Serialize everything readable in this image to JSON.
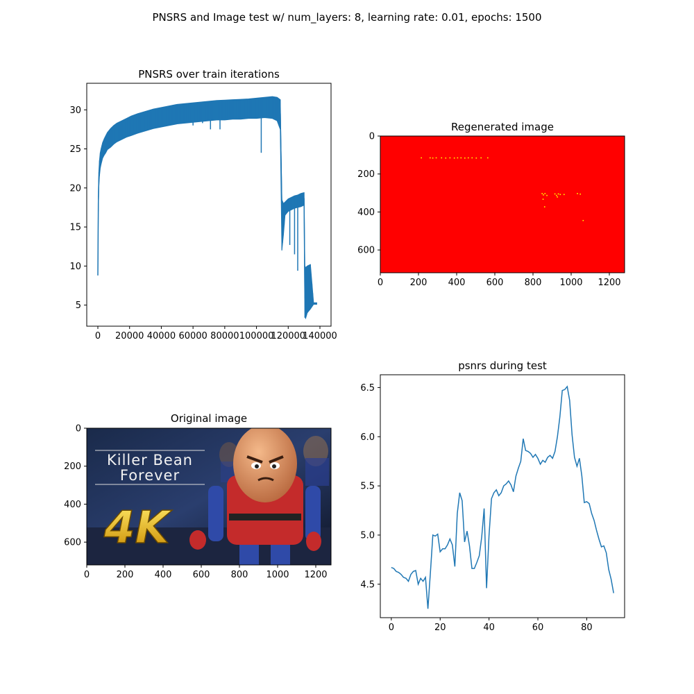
{
  "figure": {
    "suptitle": "PNSRS and Image test w/ num_layers: 8, learning rate: 0.01, epochs: 1500"
  },
  "colors": {
    "line": "#1f77b4",
    "regen_bg": "#ff0000",
    "regen_speckle": "#ffff00"
  },
  "chart_data": [
    {
      "id": "train",
      "type": "line",
      "title": "PNSRS over train iterations",
      "xlabel": "",
      "ylabel": "",
      "xlim": [
        -7000,
        147000
      ],
      "ylim": [
        2.3,
        33.4
      ],
      "xticks": [
        0,
        20000,
        40000,
        60000,
        80000,
        100000,
        120000,
        140000
      ],
      "xtick_labels": [
        "0",
        "20000",
        "40000",
        "60000",
        "80000",
        "100000",
        "120000",
        "140000"
      ],
      "yticks": [
        5,
        10,
        15,
        20,
        25,
        30
      ],
      "ytick_labels": [
        "5",
        "10",
        "15",
        "20",
        "25",
        "30"
      ],
      "series": [
        {
          "x": [
            0,
            300,
            600,
            1000,
            1500,
            2000,
            3000,
            4000,
            5000,
            6000,
            8000,
            10000,
            12000,
            15000,
            18000,
            21000,
            25000,
            30000,
            35000,
            40000,
            45000,
            50000,
            55000,
            60000,
            65000,
            70000,
            75000,
            80000,
            85000,
            90000,
            95000,
            100000,
            105000,
            110000,
            113000,
            115000,
            116000,
            117000,
            118000,
            120000,
            122000,
            124000,
            126000,
            128000,
            130000,
            130500,
            131000,
            132000,
            134000,
            136000,
            138000
          ],
          "y": [
            8.8,
            18.0,
            21.0,
            22.5,
            23.5,
            24.0,
            24.8,
            25.2,
            25.6,
            26.0,
            26.4,
            26.8,
            27.1,
            27.4,
            27.7,
            27.9,
            28.2,
            28.5,
            28.8,
            29.0,
            29.2,
            29.4,
            29.5,
            29.6,
            29.7,
            29.8,
            29.9,
            29.95,
            30.0,
            30.05,
            30.1,
            30.15,
            30.2,
            30.2,
            30.0,
            29.5,
            17.5,
            16.8,
            17.2,
            17.8,
            18.0,
            18.2,
            18.3,
            18.5,
            18.6,
            6.0,
            5.5,
            6.0,
            6.0,
            5.2,
            5.2
          ],
          "upper": [
            8.8,
            19.0,
            22.0,
            23.5,
            24.5,
            25.0,
            25.8,
            26.3,
            26.7,
            27.1,
            27.6,
            28.0,
            28.3,
            28.6,
            28.9,
            29.2,
            29.5,
            29.8,
            30.1,
            30.3,
            30.5,
            30.7,
            30.8,
            30.9,
            31.0,
            31.1,
            31.2,
            31.25,
            31.3,
            31.35,
            31.4,
            31.5,
            31.6,
            31.7,
            31.6,
            31.3,
            18.5,
            18.0,
            18.2,
            18.6,
            18.8,
            19.0,
            19.1,
            19.3,
            19.4,
            10.0,
            9.8,
            10.0,
            10.2,
            5.3,
            5.3
          ],
          "lower": [
            8.8,
            17.0,
            20.0,
            21.5,
            22.5,
            23.0,
            23.8,
            24.2,
            24.5,
            24.9,
            25.2,
            25.6,
            25.9,
            26.2,
            26.5,
            26.7,
            27.0,
            27.3,
            27.6,
            27.8,
            28.0,
            28.2,
            28.3,
            28.4,
            28.5,
            28.6,
            28.7,
            28.7,
            28.8,
            28.8,
            28.9,
            28.9,
            29.0,
            28.9,
            28.6,
            27.5,
            12.0,
            14.0,
            16.5,
            17.0,
            17.2,
            17.4,
            17.5,
            17.6,
            17.8,
            3.5,
            3.3,
            4.0,
            4.5,
            5.1,
            5.1
          ]
        }
      ],
      "spikes": [
        {
          "x": 60000,
          "y": 28.0
        },
        {
          "x": 66000,
          "y": 28.3
        },
        {
          "x": 71000,
          "y": 27.5
        },
        {
          "x": 77000,
          "y": 27.5
        },
        {
          "x": 103000,
          "y": 24.5
        },
        {
          "x": 121000,
          "y": 12.7
        },
        {
          "x": 124000,
          "y": 11.5
        },
        {
          "x": 126000,
          "y": 9.4
        },
        {
          "x": 130500,
          "y": 3.4
        }
      ]
    },
    {
      "id": "regen",
      "type": "heatmap",
      "title": "Regenerated image",
      "xlim": [
        0,
        1280
      ],
      "ylim": [
        720,
        0
      ],
      "xticks": [
        0,
        200,
        400,
        600,
        800,
        1000,
        1200
      ],
      "xtick_labels": [
        "0",
        "200",
        "400",
        "600",
        "800",
        "1000",
        "1200"
      ],
      "yticks": [
        0,
        200,
        400,
        600
      ],
      "ytick_labels": [
        "0",
        "200",
        "400",
        "600"
      ],
      "speckles": [
        {
          "x": 212,
          "y": 112
        },
        {
          "x": 258,
          "y": 112
        },
        {
          "x": 272,
          "y": 113
        },
        {
          "x": 290,
          "y": 112
        },
        {
          "x": 318,
          "y": 112
        },
        {
          "x": 340,
          "y": 113
        },
        {
          "x": 362,
          "y": 112
        },
        {
          "x": 385,
          "y": 113
        },
        {
          "x": 402,
          "y": 112
        },
        {
          "x": 420,
          "y": 112
        },
        {
          "x": 440,
          "y": 113
        },
        {
          "x": 458,
          "y": 112
        },
        {
          "x": 478,
          "y": 112
        },
        {
          "x": 500,
          "y": 113
        },
        {
          "x": 525,
          "y": 112
        },
        {
          "x": 560,
          "y": 112
        },
        {
          "x": 845,
          "y": 300
        },
        {
          "x": 852,
          "y": 307
        },
        {
          "x": 860,
          "y": 300
        },
        {
          "x": 870,
          "y": 310
        },
        {
          "x": 850,
          "y": 330
        },
        {
          "x": 912,
          "y": 302
        },
        {
          "x": 920,
          "y": 310
        },
        {
          "x": 930,
          "y": 302
        },
        {
          "x": 940,
          "y": 305
        },
        {
          "x": 925,
          "y": 318
        },
        {
          "x": 960,
          "y": 305
        },
        {
          "x": 1030,
          "y": 300
        },
        {
          "x": 1045,
          "y": 303
        },
        {
          "x": 858,
          "y": 370
        },
        {
          "x": 1060,
          "y": 442
        }
      ]
    },
    {
      "id": "original",
      "type": "heatmap",
      "title": "Original image",
      "xlim": [
        0,
        1280
      ],
      "ylim": [
        720,
        0
      ],
      "xticks": [
        0,
        200,
        400,
        600,
        800,
        1000,
        1200
      ],
      "xtick_labels": [
        "0",
        "200",
        "400",
        "600",
        "800",
        "1000",
        "1200"
      ],
      "yticks": [
        0,
        200,
        400,
        600
      ],
      "ytick_labels": [
        "0",
        "200",
        "400",
        "600"
      ],
      "image_text": {
        "line1": "Killer Bean",
        "line2": "Forever",
        "badge": "4K"
      }
    },
    {
      "id": "test",
      "type": "line",
      "title": "psnrs during test",
      "xlabel": "",
      "ylabel": "",
      "xlim": [
        -4.5,
        95.5
      ],
      "ylim": [
        4.16,
        6.63
      ],
      "xticks": [
        0,
        20,
        40,
        60,
        80
      ],
      "xtick_labels": [
        "0",
        "20",
        "40",
        "60",
        "80"
      ],
      "yticks": [
        4.5,
        5.0,
        5.5,
        6.0,
        6.5
      ],
      "ytick_labels": [
        "4.5",
        "5.0",
        "5.5",
        "6.0",
        "6.5"
      ],
      "series": [
        {
          "x": [
            0,
            1,
            2,
            3,
            4,
            5,
            6,
            7,
            8,
            9,
            10,
            11,
            12,
            13,
            14,
            15,
            16,
            17,
            18,
            19,
            20,
            21,
            22,
            23,
            24,
            25,
            26,
            27,
            28,
            29,
            30,
            31,
            32,
            33,
            34,
            35,
            36,
            37,
            38,
            39,
            40,
            41,
            42,
            43,
            44,
            45,
            46,
            47,
            48,
            49,
            50,
            51,
            52,
            53,
            54,
            55,
            56,
            57,
            58,
            59,
            60,
            61,
            62,
            63,
            64,
            65,
            66,
            67,
            68,
            69,
            70,
            71,
            72,
            73,
            74,
            75,
            76,
            77,
            78,
            79,
            80,
            81,
            82,
            83,
            84,
            85,
            86,
            87,
            88,
            89,
            90,
            91
          ],
          "y": [
            4.67,
            4.66,
            4.63,
            4.62,
            4.6,
            4.57,
            4.56,
            4.53,
            4.6,
            4.63,
            4.64,
            4.5,
            4.56,
            4.53,
            4.57,
            4.25,
            4.62,
            5.0,
            4.99,
            5.01,
            4.83,
            4.86,
            4.86,
            4.9,
            4.96,
            4.9,
            4.68,
            5.22,
            5.43,
            5.35,
            4.93,
            5.04,
            4.89,
            4.66,
            4.66,
            4.72,
            4.79,
            4.98,
            5.27,
            4.46,
            4.99,
            5.37,
            5.43,
            5.46,
            5.4,
            5.43,
            5.5,
            5.52,
            5.55,
            5.51,
            5.44,
            5.6,
            5.68,
            5.75,
            5.98,
            5.86,
            5.85,
            5.83,
            5.79,
            5.82,
            5.78,
            5.72,
            5.76,
            5.74,
            5.79,
            5.81,
            5.78,
            5.85,
            6.0,
            6.2,
            6.47,
            6.48,
            6.51,
            6.37,
            6.02,
            5.79,
            5.7,
            5.78,
            5.6,
            5.33,
            5.34,
            5.32,
            5.22,
            5.15,
            5.05,
            4.96,
            4.88,
            4.89,
            4.82,
            4.65,
            4.55,
            4.41
          ]
        }
      ]
    }
  ]
}
